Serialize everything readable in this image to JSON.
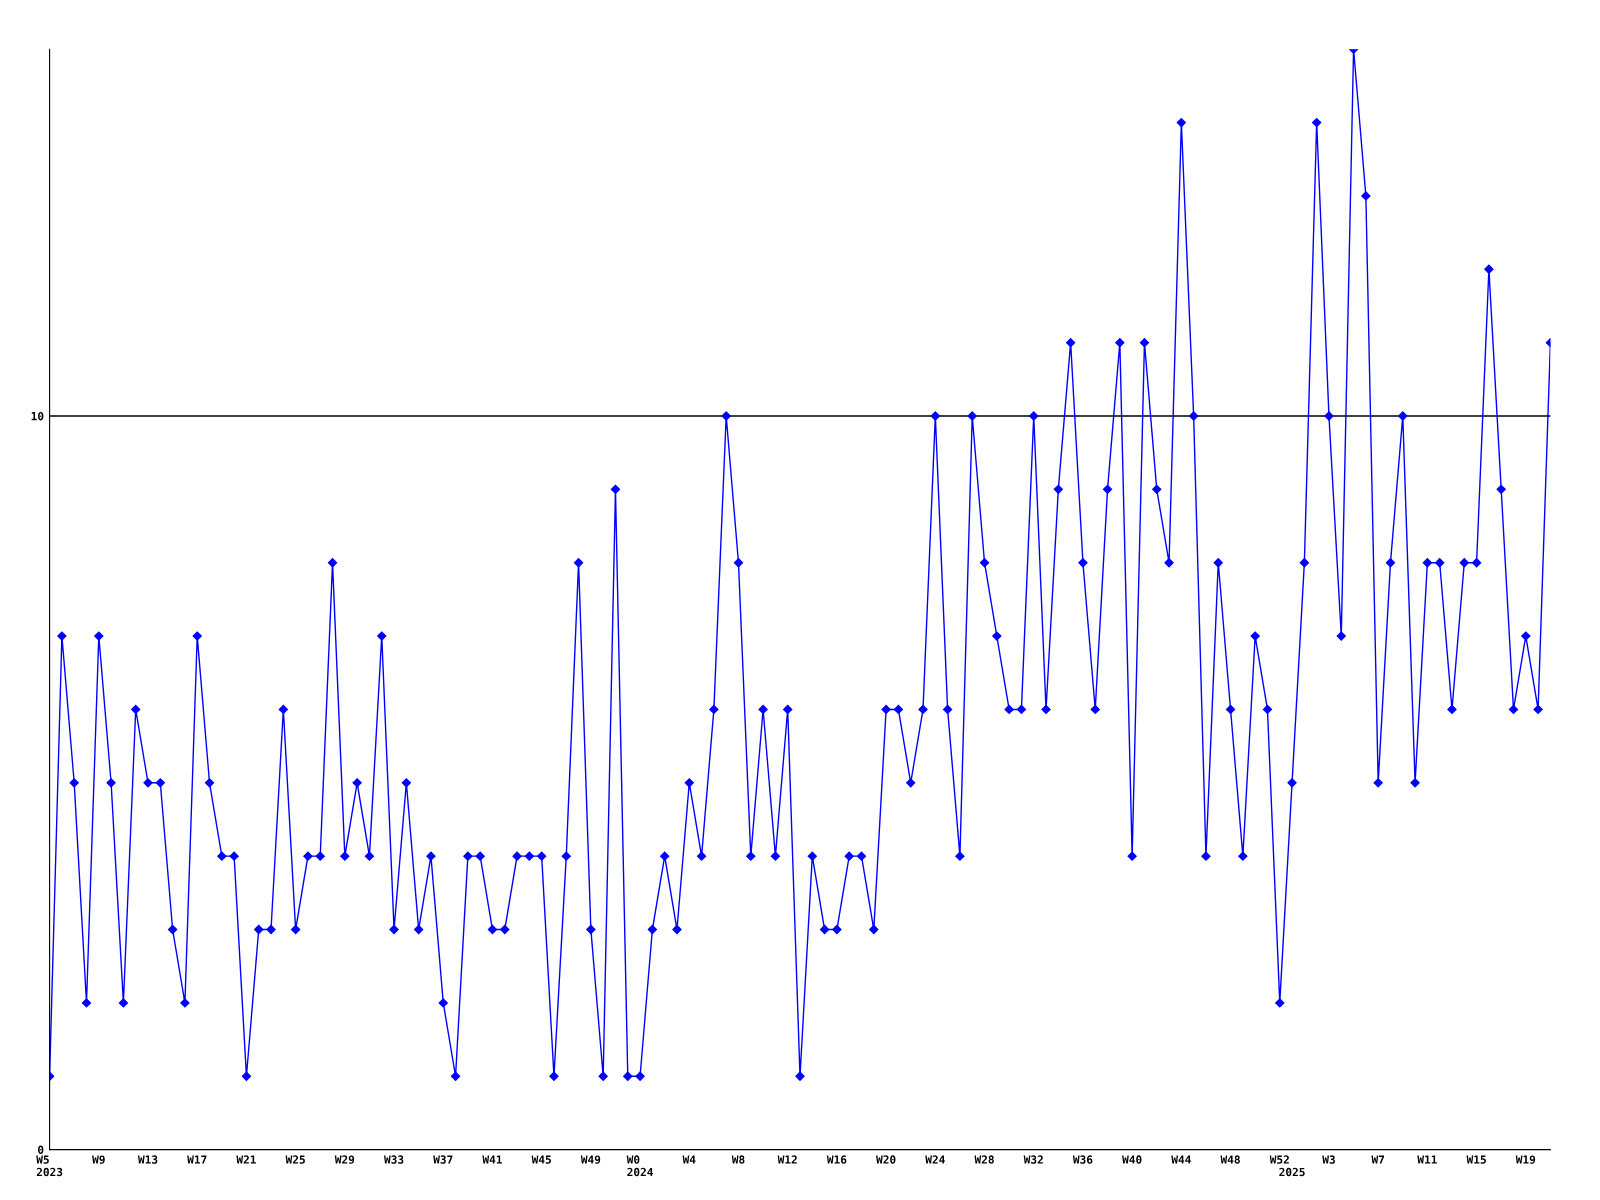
{
  "chart_data": {
    "type": "line",
    "categories": [
      "W5\n2023",
      null,
      null,
      null,
      "W9",
      null,
      null,
      null,
      "W13",
      null,
      null,
      null,
      "W17",
      null,
      null,
      null,
      "W21",
      null,
      null,
      null,
      "W25",
      null,
      null,
      null,
      "W29",
      null,
      null,
      null,
      "W33",
      null,
      null,
      null,
      "W37",
      null,
      null,
      null,
      "W41",
      null,
      null,
      null,
      "W45",
      null,
      null,
      null,
      "W49",
      null,
      null,
      null,
      "W0\n2024",
      null,
      null,
      null,
      "W4",
      null,
      null,
      null,
      "W8",
      null,
      null,
      null,
      "W12",
      null,
      null,
      null,
      "W16",
      null,
      null,
      null,
      "W20",
      null,
      null,
      null,
      "W24",
      null,
      null,
      null,
      "W28",
      null,
      null,
      null,
      "W32",
      null,
      null,
      null,
      "W36",
      null,
      null,
      null,
      "W40",
      null,
      null,
      null,
      "W44",
      null,
      null,
      null,
      "W48",
      null,
      null,
      null,
      "W52",
      "\n2025",
      null,
      null,
      "W3",
      null,
      null,
      null,
      "W7",
      null,
      null,
      null,
      "W11",
      null,
      null,
      null,
      "W15",
      null,
      null,
      null,
      "W19",
      null,
      null
    ],
    "series": [
      {
        "color": "#0000ff",
        "values": [
          1,
          7,
          5,
          2,
          7,
          5,
          2,
          6,
          5,
          5,
          3,
          2,
          7,
          5,
          4,
          4,
          1,
          3,
          3,
          6,
          3,
          4,
          4,
          8,
          4,
          5,
          4,
          7,
          3,
          5,
          3,
          4,
          2,
          1,
          4,
          4,
          3,
          3,
          4,
          4,
          4,
          1,
          4,
          8,
          3,
          1,
          9,
          1,
          1,
          3,
          4,
          3,
          5,
          4,
          6,
          10,
          8,
          4,
          6,
          4,
          6,
          1,
          4,
          3,
          3,
          4,
          4,
          3,
          6,
          6,
          5,
          6,
          10,
          6,
          4,
          10,
          8,
          7,
          6,
          6,
          10,
          6,
          9,
          11,
          8,
          6,
          9,
          11,
          4,
          11,
          9,
          8,
          14,
          10,
          4,
          8,
          6,
          4,
          7,
          6,
          2,
          5,
          8,
          14,
          10,
          7,
          15,
          13,
          5,
          8,
          10,
          5,
          8,
          8,
          6,
          8,
          8,
          12,
          9,
          6,
          7,
          6,
          11
        ]
      }
    ],
    "ylim": [
      0,
      15
    ],
    "yticks": [
      0,
      10
    ],
    "grid": "y",
    "marker": "diamond",
    "line_style": "solid"
  }
}
